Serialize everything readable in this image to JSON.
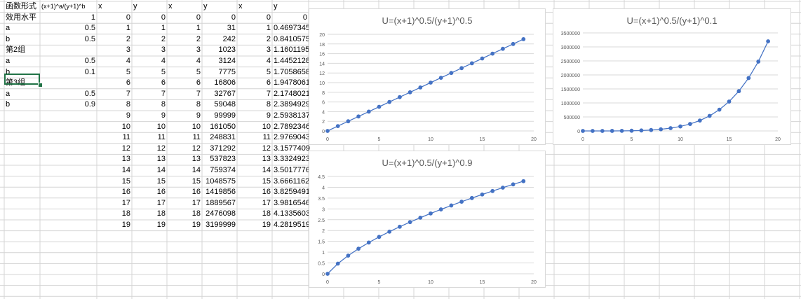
{
  "sheet": {
    "columns": [
      {
        "key": "A",
        "label": "函数形式"
      },
      {
        "key": "B",
        "label": "(x+1)^a/(y+1)^b"
      },
      {
        "key": "C",
        "label": "x"
      },
      {
        "key": "D",
        "label": "y"
      },
      {
        "key": "E",
        "label": "x"
      },
      {
        "key": "F",
        "label": "y"
      },
      {
        "key": "G",
        "label": "x"
      },
      {
        "key": "H",
        "label": "y"
      }
    ],
    "params": [
      {
        "label": "效用水平",
        "value": "1"
      },
      {
        "label": "a",
        "value": "0.5"
      },
      {
        "label": "b",
        "value": "0.5"
      },
      {
        "label": "第2组",
        "value": ""
      },
      {
        "label": "a",
        "value": "0.5"
      },
      {
        "label": "b",
        "value": "0.1"
      },
      {
        "label": "第3组",
        "value": ""
      },
      {
        "label": "a",
        "value": "0.5"
      },
      {
        "label": "b",
        "value": "0.9"
      }
    ],
    "rows": [
      [
        "0",
        "0",
        "0",
        "0",
        "0",
        "0"
      ],
      [
        "1",
        "1",
        "1",
        "31",
        "1",
        "0.4697345"
      ],
      [
        "2",
        "2",
        "2",
        "242",
        "2",
        "0.8410575"
      ],
      [
        "3",
        "3",
        "3",
        "1023",
        "3",
        "1.1601195"
      ],
      [
        "4",
        "4",
        "4",
        "3124",
        "4",
        "1.4452128"
      ],
      [
        "5",
        "5",
        "5",
        "7775",
        "5",
        "1.7058658"
      ],
      [
        "6",
        "6",
        "6",
        "16806",
        "6",
        "1.9478061"
      ],
      [
        "7",
        "7",
        "7",
        "32767",
        "7",
        "2.1748021"
      ],
      [
        "8",
        "8",
        "8",
        "59048",
        "8",
        "2.3894929"
      ],
      [
        "9",
        "9",
        "9",
        "99999",
        "9",
        "2.5938137"
      ],
      [
        "10",
        "10",
        "10",
        "161050",
        "10",
        "2.7892346"
      ],
      [
        "11",
        "11",
        "11",
        "248831",
        "11",
        "2.9769043"
      ],
      [
        "12",
        "12",
        "12",
        "371292",
        "12",
        "3.1577409"
      ],
      [
        "13",
        "13",
        "13",
        "537823",
        "13",
        "3.3324923"
      ],
      [
        "14",
        "14",
        "14",
        "759374",
        "14",
        "3.5017776"
      ],
      [
        "15",
        "15",
        "15",
        "1048575",
        "15",
        "3.6661162"
      ],
      [
        "16",
        "16",
        "16",
        "1419856",
        "16",
        "3.8259491"
      ],
      [
        "17",
        "17",
        "17",
        "1889567",
        "17",
        "3.9816546"
      ],
      [
        "18",
        "18",
        "18",
        "2476098",
        "18",
        "4.1335603"
      ],
      [
        "19",
        "19",
        "19",
        "3199999",
        "19",
        "4.2819519"
      ]
    ]
  },
  "colors": {
    "series": "#4472c4",
    "gridline": "#d9d9d9",
    "cell_border": "#d4d4d4",
    "selection": "#217346",
    "axis_text": "#595959"
  },
  "chart_data": [
    {
      "type": "scatter",
      "title": "U=(x+1)^0.5/(y+1)^0.5",
      "xlim": [
        0,
        20
      ],
      "ylim": [
        0,
        20
      ],
      "xticks": [
        "0",
        "5",
        "10",
        "15",
        "20"
      ],
      "yticks": [
        "0",
        "2",
        "4",
        "6",
        "8",
        "10",
        "12",
        "14",
        "16",
        "18",
        "20"
      ],
      "grid": true,
      "series": [
        {
          "x": [
            0,
            1,
            2,
            3,
            4,
            5,
            6,
            7,
            8,
            9,
            10,
            11,
            12,
            13,
            14,
            15,
            16,
            17,
            18,
            19
          ],
          "y": [
            0,
            1,
            2,
            3,
            4,
            5,
            6,
            7,
            8,
            9,
            10,
            11,
            12,
            13,
            14,
            15,
            16,
            17,
            18,
            19
          ]
        }
      ]
    },
    {
      "type": "scatter",
      "title": "U=(x+1)^0.5/(y+1)^0.1",
      "xlim": [
        0,
        20
      ],
      "ylim": [
        0,
        3500000
      ],
      "xticks": [
        "0",
        "5",
        "10",
        "15",
        "20"
      ],
      "yticks": [
        "0",
        "500000",
        "1000000",
        "1500000",
        "2000000",
        "2500000",
        "3000000",
        "3500000"
      ],
      "grid": true,
      "series": [
        {
          "x": [
            0,
            1,
            2,
            3,
            4,
            5,
            6,
            7,
            8,
            9,
            10,
            11,
            12,
            13,
            14,
            15,
            16,
            17,
            18,
            19
          ],
          "y": [
            0,
            31,
            242,
            1023,
            3124,
            7775,
            16806,
            32767,
            59048,
            99999,
            161050,
            248831,
            371292,
            537823,
            759374,
            1048575,
            1419856,
            1889567,
            2476098,
            3199999
          ]
        }
      ]
    },
    {
      "type": "scatter",
      "title": "U=(x+1)^0.5/(y+1)^0.9",
      "xlim": [
        0,
        20
      ],
      "ylim": [
        0,
        4.5
      ],
      "xticks": [
        "0",
        "5",
        "10",
        "15",
        "20"
      ],
      "yticks": [
        "0",
        "0.5",
        "1",
        "1.5",
        "2",
        "2.5",
        "3",
        "3.5",
        "4",
        "4.5"
      ],
      "grid": true,
      "series": [
        {
          "x": [
            0,
            1,
            2,
            3,
            4,
            5,
            6,
            7,
            8,
            9,
            10,
            11,
            12,
            13,
            14,
            15,
            16,
            17,
            18,
            19
          ],
          "y": [
            0,
            0.4697345,
            0.8410575,
            1.1601195,
            1.4452128,
            1.7058658,
            1.9478061,
            2.1748021,
            2.3894929,
            2.5938137,
            2.7892346,
            2.9769043,
            3.1577409,
            3.3324923,
            3.5017776,
            3.6661162,
            3.8259491,
            3.9816546,
            4.1335603,
            4.2819519
          ]
        }
      ]
    }
  ]
}
